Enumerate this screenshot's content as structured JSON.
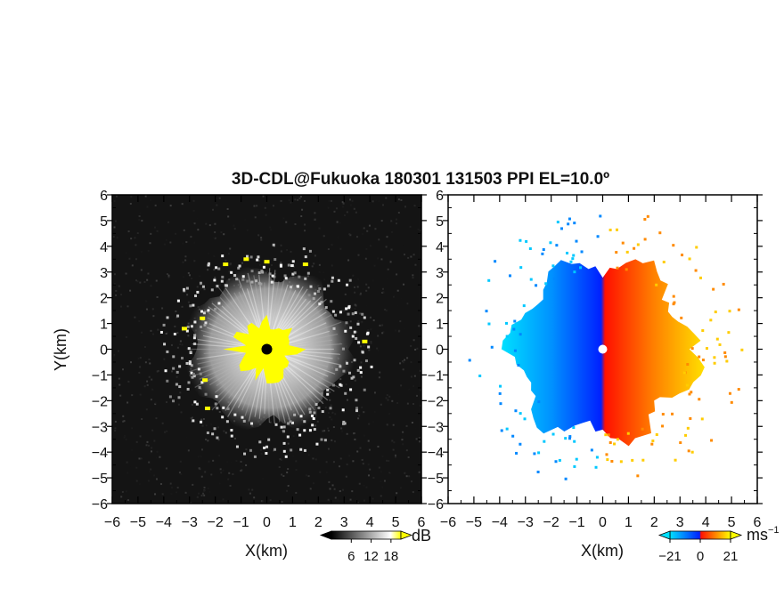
{
  "title": "3D-CDL@Fukuoka 180301 131503 PPI EL=10.0º",
  "chart_data": [
    {
      "type": "heatmap",
      "name": "reflectivity-ppi",
      "xlabel": "X(km)",
      "ylabel": "Y(km)",
      "xlim": [
        -6,
        6
      ],
      "ylim": [
        -6,
        6
      ],
      "xticks": [
        "−6",
        "−5",
        "−4",
        "−3",
        "−2",
        "−1",
        "0",
        "1",
        "2",
        "3",
        "4",
        "5",
        "6"
      ],
      "yticks": [
        "−6",
        "−5",
        "−4",
        "−3",
        "−2",
        "−1",
        "0",
        "1",
        "2",
        "3",
        "4",
        "5",
        "6"
      ],
      "background": "#141414",
      "colorbar": {
        "label": "dB",
        "ticks": [
          "6",
          "12",
          "18"
        ],
        "range": [
          0,
          21
        ],
        "colors": [
          "#000000",
          "#ffffff",
          "#ffff00"
        ]
      },
      "saturated_color": "#ffff00",
      "radar_marker_color": "#000000"
    },
    {
      "type": "heatmap",
      "name": "doppler-velocity-ppi",
      "xlabel": "X(km)",
      "xlim": [
        -6,
        6
      ],
      "ylim": [
        -6,
        6
      ],
      "xticks": [
        "−6",
        "−5",
        "−4",
        "−3",
        "−2",
        "−1",
        "0",
        "1",
        "2",
        "3",
        "4",
        "5",
        "6"
      ],
      "yticks": [
        "−6",
        "−5",
        "−4",
        "−3",
        "−2",
        "−1",
        "0",
        "1",
        "2",
        "3",
        "4",
        "5",
        "6"
      ],
      "background": "#ffffff",
      "colorbar": {
        "label": "ms",
        "label_exponent": "−1",
        "ticks": [
          "−21",
          "0",
          "21"
        ],
        "range": [
          -21,
          21
        ],
        "colors": [
          "#00e0ff",
          "#0030ff",
          "#ff2000",
          "#ffff00"
        ]
      },
      "radar_marker_color": "#ffffff"
    }
  ]
}
